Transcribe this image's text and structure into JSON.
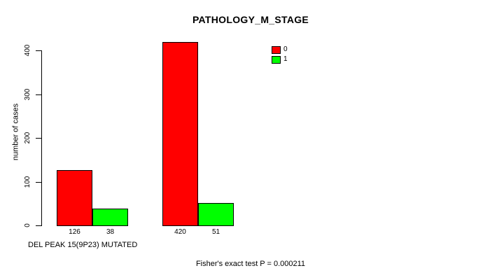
{
  "chart_data": {
    "type": "bar",
    "title": "PATHOLOGY_M_STAGE",
    "xlabel": "DEL PEAK 15(9P23) MUTATED",
    "ylabel": "number of cases",
    "annotation": "Fisher's exact test P = 0.000211",
    "ylim": [
      0,
      420
    ],
    "yticks": [
      0,
      100,
      200,
      300,
      400
    ],
    "grid": false,
    "legend_position": "top-right-inside",
    "categories": [
      "",
      ""
    ],
    "series": [
      {
        "name": "0",
        "color": "#ff0000",
        "values": [
          126,
          420
        ]
      },
      {
        "name": "1",
        "color": "#00ff00",
        "values": [
          38,
          51
        ]
      }
    ],
    "bar_value_labels": [
      [
        "126",
        "38"
      ],
      [
        "420",
        "51"
      ]
    ]
  },
  "colors": {
    "axis": "#000000",
    "background": "#ffffff"
  }
}
